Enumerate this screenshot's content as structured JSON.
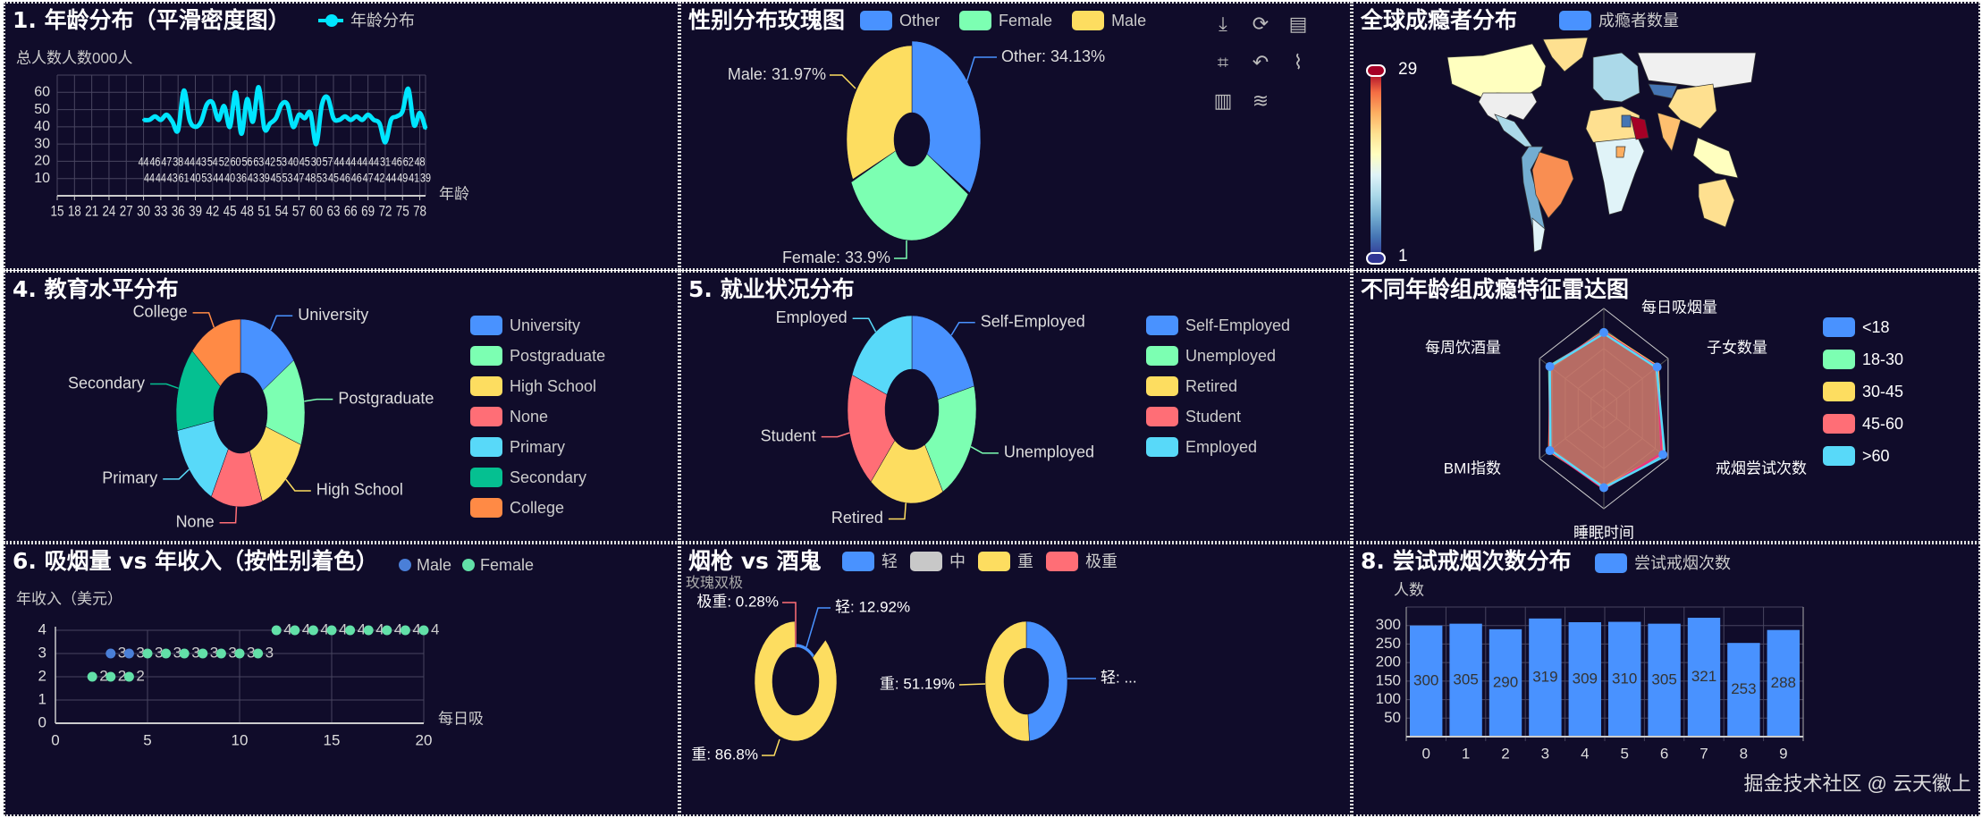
{
  "theme": {
    "background": "#100c2a",
    "palette": [
      "#4992ff",
      "#7cffb2",
      "#fddd60",
      "#ff6e76",
      "#58d9f9",
      "#05c091",
      "#ff8a45"
    ]
  },
  "toolbox": {
    "icons": [
      "download-icon",
      "refresh-icon",
      "data-view-icon",
      "zoom-crop-icon",
      "restore-icon",
      "line-chart-icon",
      "bar-chart-icon",
      "stack-icon"
    ]
  },
  "watermark": "掘金技术社区 @ 云天徽上",
  "chart_data": [
    {
      "type": "line",
      "title": "1. 年龄分布（平滑密度图）",
      "legend": [
        "年龄分布"
      ],
      "series_name": "年龄分布",
      "ylabel": "总人数人数000人",
      "xlabel": "年龄",
      "xlim": [
        15,
        79
      ],
      "ylim": [
        0,
        70
      ],
      "xticks": [
        15,
        18,
        21,
        24,
        27,
        30,
        33,
        36,
        39,
        42,
        45,
        48,
        51,
        54,
        57,
        60,
        63,
        66,
        69,
        72,
        75,
        78
      ],
      "yticks": [
        10,
        20,
        30,
        40,
        50,
        60
      ],
      "x": [
        30,
        31,
        32,
        33,
        34,
        35,
        36,
        37,
        38,
        39,
        40,
        41,
        42,
        43,
        44,
        45,
        46,
        47,
        48,
        49,
        50,
        51,
        52,
        53,
        54,
        55,
        56,
        57,
        58,
        59,
        60,
        61,
        62,
        63,
        64,
        65,
        66,
        67,
        68,
        69,
        70,
        71,
        72,
        73,
        74,
        75,
        76,
        77,
        78,
        79
      ],
      "values": [
        44,
        44,
        46,
        44,
        47,
        43,
        38,
        61,
        44,
        40,
        43,
        53,
        54,
        44,
        52,
        40,
        60,
        36,
        56,
        43,
        63,
        39,
        42,
        45,
        53,
        53,
        40,
        47,
        45,
        48,
        30,
        53,
        57,
        45,
        44,
        46,
        44,
        46,
        44,
        47,
        44,
        42,
        31,
        44,
        46,
        49,
        62,
        41,
        48,
        39
      ],
      "color": "#00e5ff"
    },
    {
      "type": "pie",
      "rose": true,
      "title": "性别分布玫瑰图",
      "categories": [
        "Other",
        "Female",
        "Male"
      ],
      "values": [
        34.13,
        33.9,
        31.97
      ],
      "labels": [
        "Other: 34.13%",
        "Female: 33.9%",
        "Male: 31.97%"
      ],
      "colors": [
        "#4992ff",
        "#7cffb2",
        "#fddd60"
      ]
    },
    {
      "type": "map",
      "title": "全球成瘾者分布",
      "legend": [
        "成瘾者数量"
      ],
      "visual_min": 1,
      "visual_max": 29,
      "visual_labels": [
        "29",
        "1"
      ]
    },
    {
      "type": "pie",
      "title": "4. 教育水平分布",
      "categories": [
        "University",
        "Postgraduate",
        "High School",
        "None",
        "Primary",
        "Secondary",
        "College"
      ],
      "values": [
        15.5,
        15,
        14,
        13,
        14.5,
        14.5,
        13.5
      ],
      "colors": [
        "#4992ff",
        "#7cffb2",
        "#fddd60",
        "#ff6e76",
        "#58d9f9",
        "#05c091",
        "#ff8a45"
      ]
    },
    {
      "type": "pie",
      "title": "5. 就业状况分布",
      "categories": [
        "Self-Employed",
        "Unemployed",
        "Retired",
        "Student",
        "Employed"
      ],
      "values": [
        21,
        21,
        19,
        20,
        19
      ],
      "colors": [
        "#4992ff",
        "#7cffb2",
        "#fddd60",
        "#ff6e76",
        "#58d9f9"
      ]
    },
    {
      "type": "radar",
      "title": "不同年龄组成瘾特征雷达图",
      "indicators": [
        "每日吸烟量",
        "子女数量",
        "戒烟尝试次数",
        "睡眠时间",
        "BMI指数",
        "每周饮酒量"
      ],
      "max": 1,
      "series": [
        {
          "name": "<18",
          "values": [
            0.76,
            0.83,
            0.92,
            0.79,
            0.84,
            0.84
          ]
        },
        {
          "name": "18-30",
          "values": [
            0.75,
            0.82,
            0.9,
            0.8,
            0.83,
            0.85
          ]
        },
        {
          "name": "30-45",
          "values": [
            0.77,
            0.84,
            0.91,
            0.78,
            0.85,
            0.83
          ]
        },
        {
          "name": "45-60",
          "values": [
            0.76,
            0.83,
            0.9,
            0.8,
            0.84,
            0.84
          ]
        },
        {
          "name": ">60",
          "values": [
            0.75,
            0.82,
            0.95,
            0.79,
            0.83,
            0.84
          ]
        }
      ],
      "colors": [
        "#4992ff",
        "#7cffb2",
        "#fddd60",
        "#ff6e76",
        "#58d9f9"
      ]
    },
    {
      "type": "scatter",
      "title": "6. 吸烟量 vs 年收入（按性别着色）",
      "ylabel": "年收入（美元）",
      "xlabel": "每日吸",
      "xlim": [
        0,
        20
      ],
      "ylim": [
        0,
        4
      ],
      "xticks": [
        0,
        5,
        10,
        15,
        20
      ],
      "yticks": [
        0,
        1,
        2,
        3,
        4
      ],
      "series": [
        {
          "name": "Male",
          "color": "#4a7fd8",
          "points": [
            [
              3,
              3
            ],
            [
              4,
              3
            ]
          ]
        },
        {
          "name": "Female",
          "color": "#62e0a8",
          "points": [
            [
              2,
              2
            ],
            [
              3,
              2
            ],
            [
              4,
              2
            ],
            [
              5,
              3
            ],
            [
              6,
              3
            ],
            [
              7,
              3
            ],
            [
              8,
              3
            ],
            [
              9,
              3
            ],
            [
              10,
              3
            ],
            [
              11,
              3
            ],
            [
              12,
              4
            ],
            [
              13,
              4
            ],
            [
              14,
              4
            ],
            [
              15,
              4
            ],
            [
              16,
              4
            ],
            [
              17,
              4
            ],
            [
              18,
              4
            ],
            [
              19,
              4
            ],
            [
              20,
              4
            ]
          ]
        }
      ]
    },
    {
      "type": "pie",
      "title": "烟枪 vs 酒鬼",
      "subtitle": "玫瑰双极",
      "legend": [
        "轻",
        "中",
        "重",
        "极重"
      ],
      "legend_colors": [
        "#4992ff",
        "#c8c8c8",
        "#fddd60",
        "#ff6e76"
      ],
      "pies": [
        {
          "categories": [
            "轻",
            "重",
            "极重"
          ],
          "values": [
            12.92,
            86.8,
            0.28
          ],
          "labels": [
            "轻: 12.92%",
            "重: 86.8%",
            "极重: 0.28%"
          ],
          "colors": [
            "#4992ff",
            "#fddd60",
            "#ff6e76"
          ]
        },
        {
          "categories": [
            "轻",
            "重"
          ],
          "values": [
            48.81,
            51.19
          ],
          "labels": [
            "轻: ...",
            "重: 51.19%"
          ],
          "colors": [
            "#4992ff",
            "#fddd60"
          ]
        }
      ]
    },
    {
      "type": "bar",
      "title": "8. 尝试戒烟次数分布",
      "legend": [
        "尝试戒烟次数"
      ],
      "ylabel": "人数",
      "categories": [
        "0",
        "1",
        "2",
        "3",
        "4",
        "5",
        "6",
        "7",
        "8",
        "9"
      ],
      "values": [
        300,
        305,
        290,
        319,
        309,
        310,
        305,
        321,
        253,
        288
      ],
      "ylim": [
        0,
        350
      ],
      "yticks": [
        50,
        100,
        150,
        200,
        250,
        300
      ],
      "color": "#4992ff"
    }
  ]
}
